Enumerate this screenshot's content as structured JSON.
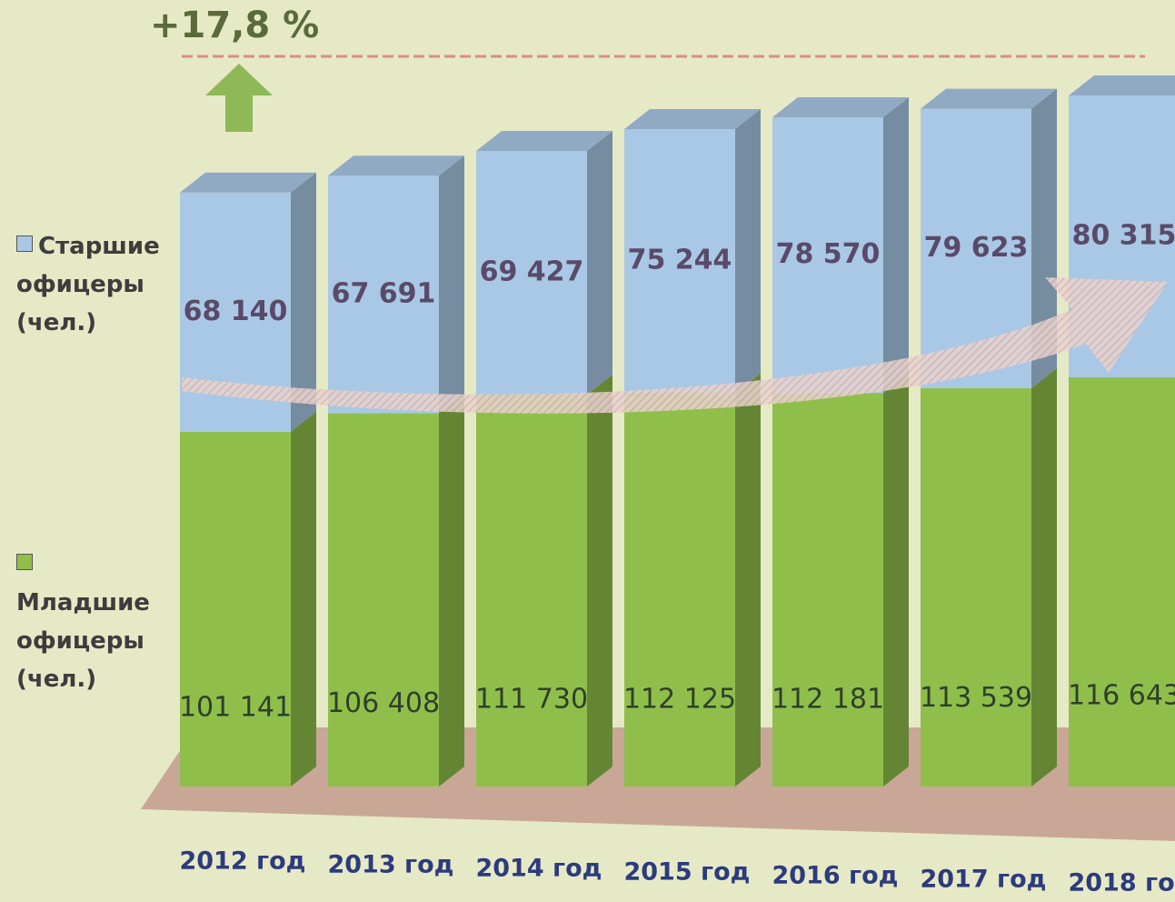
{
  "chart_data": {
    "type": "stacked-bar",
    "annotation": "+17,8 %",
    "categories": [
      "2012 год",
      "2013 год",
      "2014 год",
      "2015 год",
      "2016 год",
      "2017 год",
      "2018 год"
    ],
    "series": [
      {
        "name": "Младшие офицеры (чел.)",
        "color": "#8fbf4a",
        "values": [
          101141,
          106408,
          111730,
          112125,
          112181,
          113539,
          116643
        ],
        "value_labels": [
          "101 141",
          "106 408",
          "111 730",
          "112 125",
          "112 181",
          "113 539",
          "116 643"
        ]
      },
      {
        "name": "Старшие офицеры (чел.)",
        "color": "#a9c8e6",
        "values": [
          68140,
          67691,
          69427,
          75244,
          78570,
          79623,
          80315
        ],
        "value_labels": [
          "68 140",
          "67 691",
          "69 427",
          "75 244",
          "78 570",
          "79 623",
          "80 315"
        ]
      }
    ]
  }
}
